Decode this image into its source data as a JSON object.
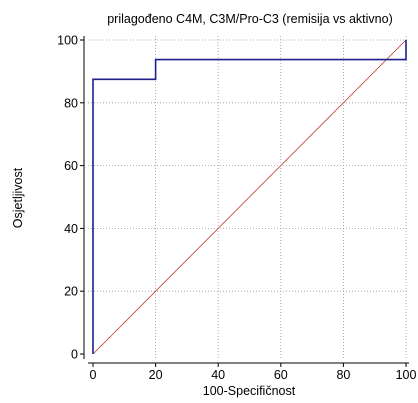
{
  "chart_data": {
    "type": "line",
    "title": "prilagođeno C4M, C3M/Pro-C3 (remisija vs aktivno)",
    "xlabel": "100-Specifičnost",
    "ylabel": "Osjetljivost",
    "xlim": [
      0,
      100
    ],
    "ylim": [
      0,
      100
    ],
    "xticks": [
      0,
      20,
      40,
      60,
      80,
      100
    ],
    "yticks": [
      0,
      20,
      40,
      60,
      80,
      100
    ],
    "grid": true,
    "series": [
      {
        "role": "roc-curve",
        "color": "#1f1f8f",
        "step": true,
        "x": [
          0,
          0,
          20,
          20,
          100,
          100
        ],
        "y": [
          0,
          87.5,
          87.5,
          93.75,
          93.75,
          100
        ]
      },
      {
        "role": "reference-diagonal",
        "color": "#c0392b",
        "x": [
          0,
          100
        ],
        "y": [
          0,
          100
        ]
      }
    ]
  }
}
